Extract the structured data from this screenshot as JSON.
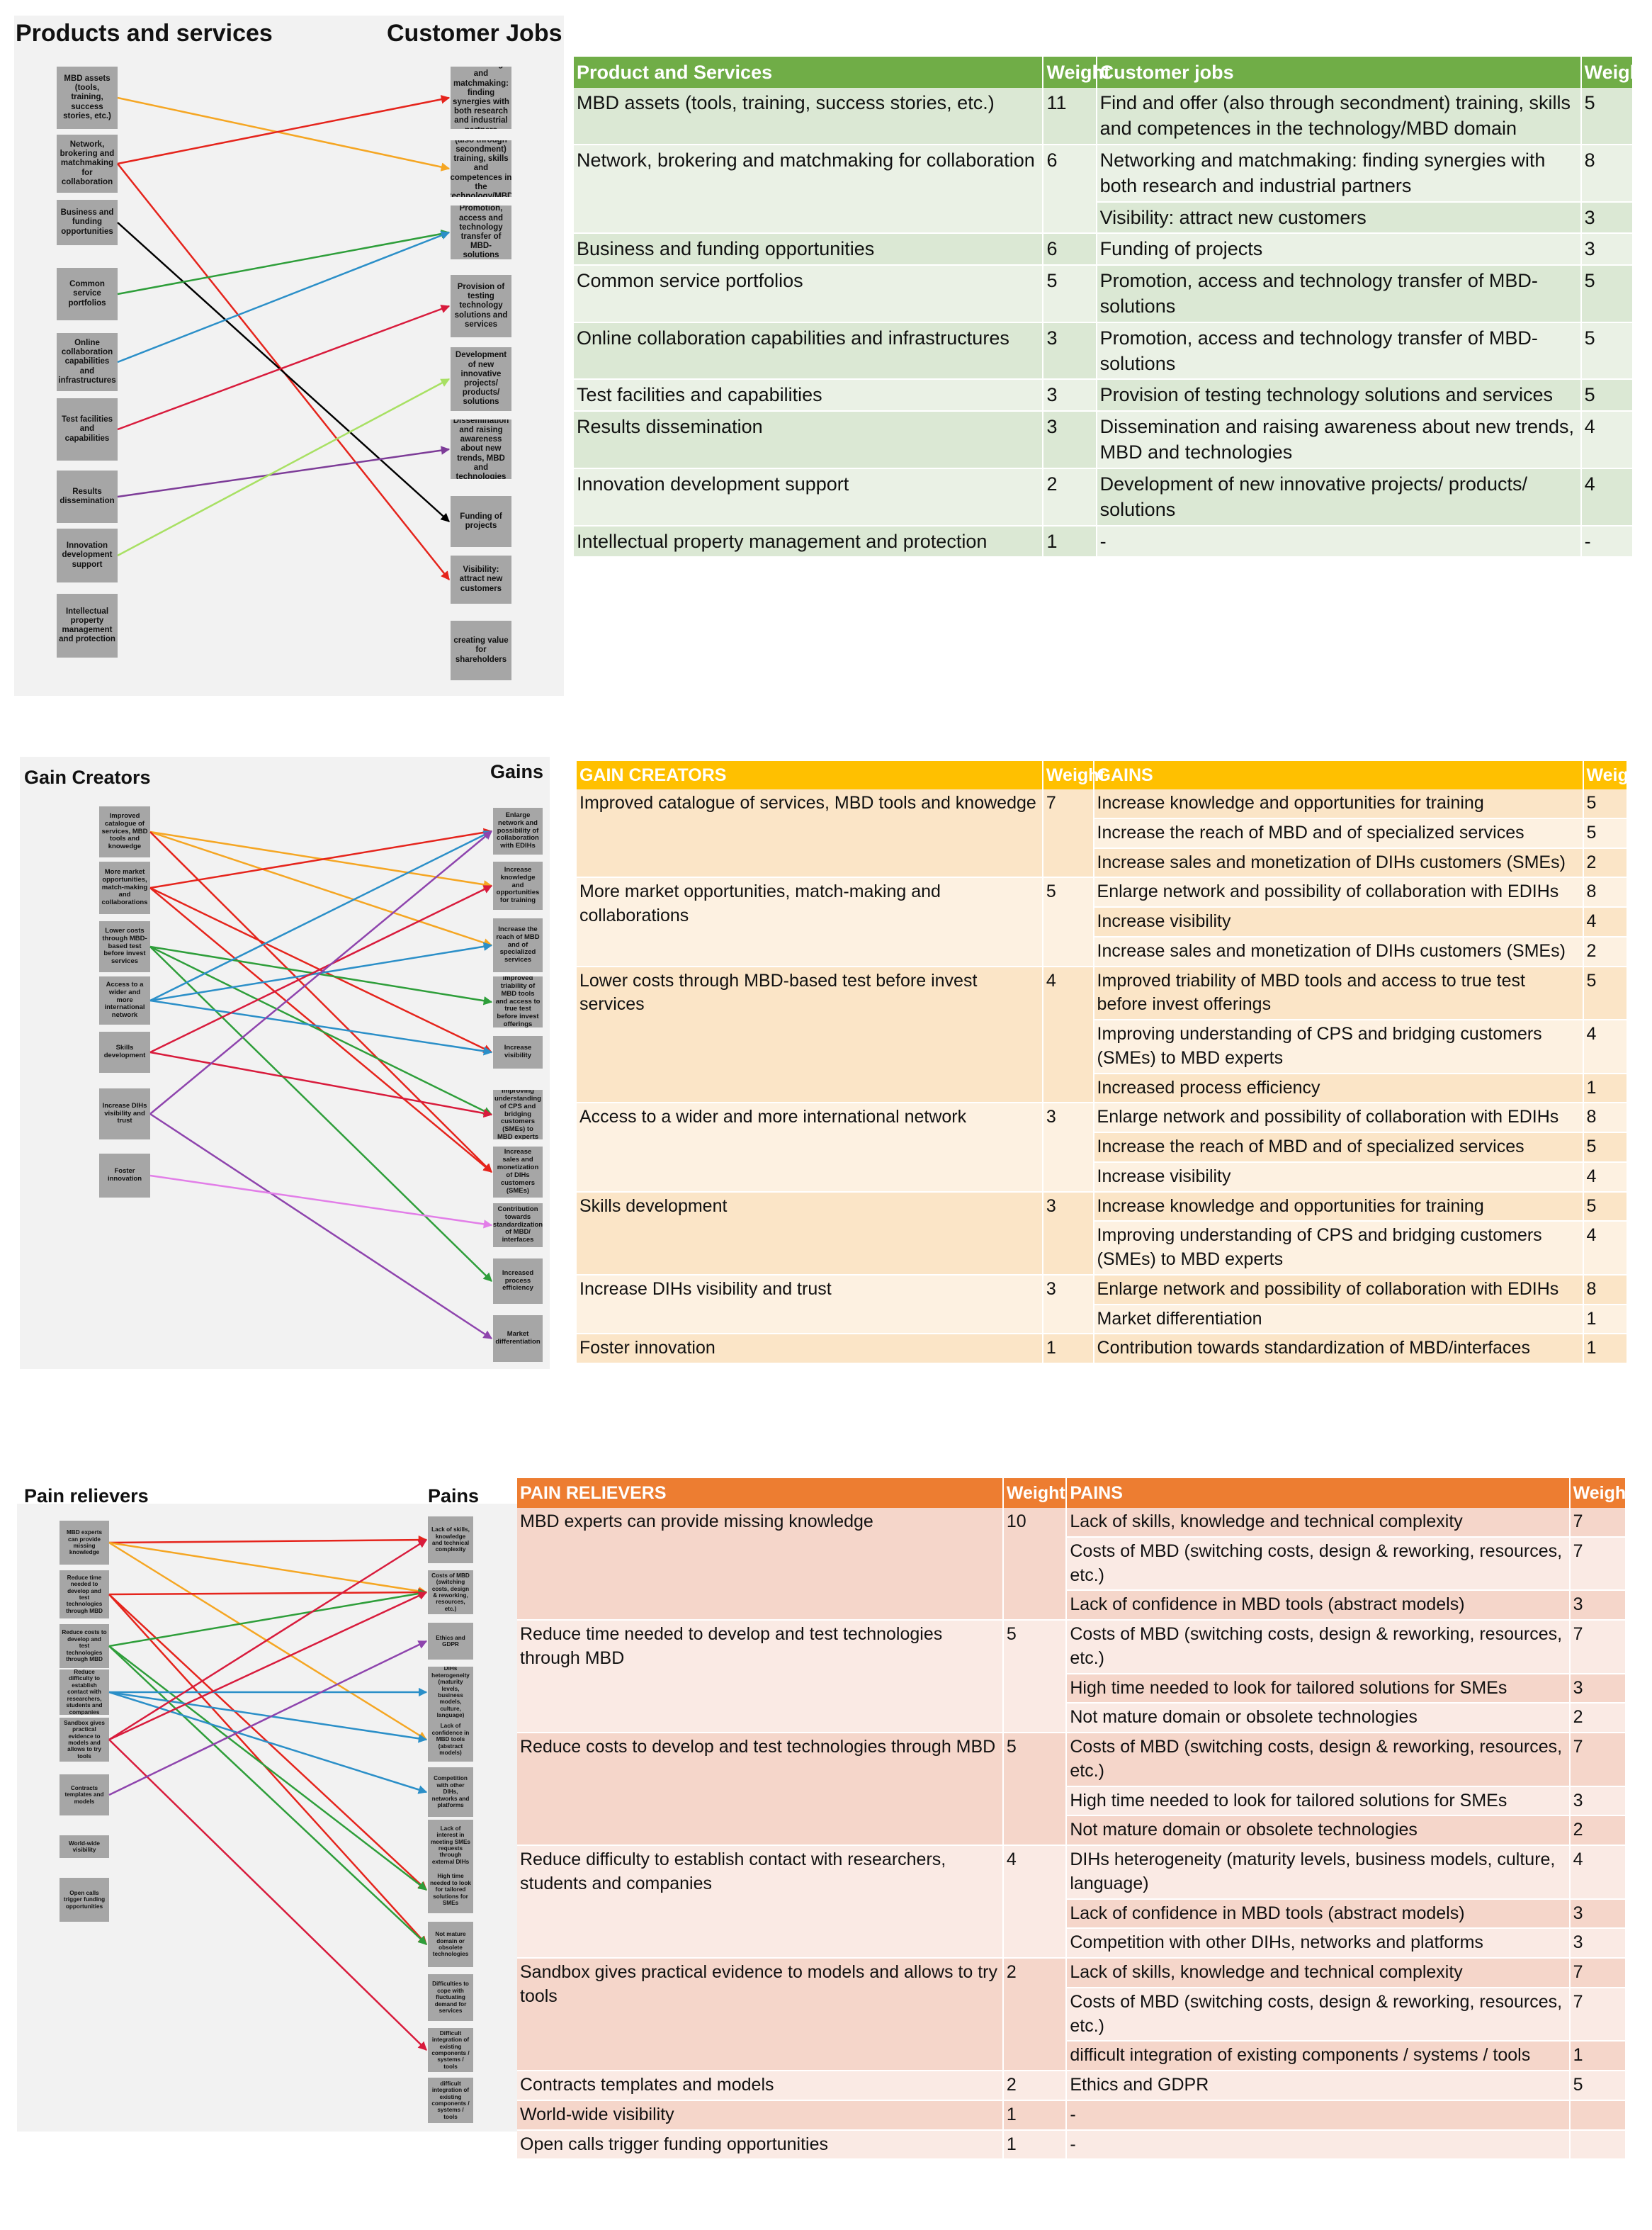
{
  "section1": {
    "left_title": "Products and services",
    "right_title": "Customer Jobs",
    "left_nodes": [
      "MBD assets (tools, training, success stories, etc.)",
      "Network, brokering and matchmaking for collaboration",
      "Business and funding opportunities",
      "Common service portfolios",
      "Online collaboration capabilities and infrastructures",
      "Test facilities and capabilities",
      "Results dissemination",
      "Innovation development support",
      "Intellectual property management and protection"
    ],
    "right_nodes": [
      "Networking and matchmaking: finding synergies with both research and industrial partners",
      "Find and offer (also through secondment) training, skills and competences in the technology/MBD domain",
      "Promotion, access and technology transfer of MBD-solutions",
      "Provision of testing technology solutions and services",
      "Development of new innovative projects/ products/ solutions",
      "Dissemination and raising awareness about new trends, MBD and technologies",
      "Funding of projects",
      "Visibility: attract new customers",
      "creating value for shareholders"
    ],
    "links": [
      {
        "from": 0,
        "to": 1,
        "color": "#f5a623"
      },
      {
        "from": 1,
        "to": 0,
        "color": "#e5241c"
      },
      {
        "from": 1,
        "to": 7,
        "color": "#e5241c"
      },
      {
        "from": 2,
        "to": 6,
        "color": "#000000"
      },
      {
        "from": 3,
        "to": 2,
        "color": "#2e9e3a"
      },
      {
        "from": 4,
        "to": 2,
        "color": "#2b8fc8"
      },
      {
        "from": 5,
        "to": 3,
        "color": "#d81b3c"
      },
      {
        "from": 6,
        "to": 5,
        "color": "#7d3c98"
      },
      {
        "from": 7,
        "to": 4,
        "color": "#a8e063"
      }
    ],
    "table": {
      "headers": [
        "Product and Services",
        "Weight",
        "Customer jobs",
        "Weight"
      ],
      "header_color": "#70ad47",
      "groups": [
        {
          "left": "MBD assets (tools, training,  success stories, etc.)",
          "weight": "11",
          "rows": [
            [
              "Find and offer (also through secondment) training, skills and competences in the technology/MBD domain",
              "5"
            ]
          ]
        },
        {
          "left": "Network, brokering and matchmaking for collaboration",
          "weight": "6",
          "rows": [
            [
              "Networking and matchmaking: finding synergies with both research and industrial partners",
              "8"
            ],
            [
              "Visibility: attract new customers",
              "3"
            ]
          ]
        },
        {
          "left": "Business and funding opportunities",
          "weight": "6",
          "rows": [
            [
              "Funding of projects",
              "3"
            ]
          ]
        },
        {
          "left": "Common service portfolios",
          "weight": "5",
          "rows": [
            [
              "Promotion, access and technology transfer of MBD-solutions",
              "5"
            ]
          ]
        },
        {
          "left": "Online collaboration capabilities and infrastructures",
          "weight": "3",
          "rows": [
            [
              "Promotion, access and technology transfer of MBD-solutions",
              "5"
            ]
          ]
        },
        {
          "left": "Test facilities and capabilities",
          "weight": "3",
          "rows": [
            [
              "Provision of testing technology solutions and services",
              "5"
            ]
          ]
        },
        {
          "left": "Results dissemination",
          "weight": "3",
          "rows": [
            [
              "Dissemination and raising awareness about new trends, MBD and technologies",
              "4"
            ]
          ]
        },
        {
          "left": "Innovation development support",
          "weight": "2",
          "rows": [
            [
              "Development of new innovative projects/ products/ solutions",
              "4"
            ]
          ]
        },
        {
          "left": "Intellectual property management and protection",
          "weight": "1",
          "rows": [
            [
              "-",
              "-"
            ]
          ]
        }
      ]
    }
  },
  "section2": {
    "left_title": "Gain Creators",
    "right_title": "Gains",
    "left_nodes": [
      "Improved catalogue of services, MBD tools and knowedge",
      "More market opportunities, match-making and collaborations",
      "Lower costs through MBD-based test before invest services",
      "Access to a wider and more international network",
      "Skills development",
      "Increase DIHs visibility and trust",
      "Foster innovation"
    ],
    "right_nodes": [
      "Enlarge network and possibility of collaboration with EDIHs",
      "Increase knowledge and opportunities for training",
      "Increase the reach of MBD and of specialized services",
      "Improved triability of MBD tools and access to true test before invest offerings",
      "Increase visibility",
      "Improving understanding of CPS and bridging customers (SMEs) to MBD experts",
      "Increase sales and monetization of DIHs customers (SMEs)",
      "Contribution towards standardization of MBD/ interfaces",
      "Increased process efficiency",
      "Market differentiation"
    ],
    "links": [
      {
        "from": 0,
        "to": 1,
        "color": "#f5a623"
      },
      {
        "from": 0,
        "to": 2,
        "color": "#f5a623"
      },
      {
        "from": 0,
        "to": 6,
        "color": "#e5241c"
      },
      {
        "from": 1,
        "to": 0,
        "color": "#e5241c"
      },
      {
        "from": 1,
        "to": 4,
        "color": "#e5241c"
      },
      {
        "from": 1,
        "to": 6,
        "color": "#e5241c"
      },
      {
        "from": 2,
        "to": 3,
        "color": "#2e9e3a"
      },
      {
        "from": 2,
        "to": 5,
        "color": "#2e9e3a"
      },
      {
        "from": 2,
        "to": 8,
        "color": "#2e9e3a"
      },
      {
        "from": 3,
        "to": 0,
        "color": "#2b8fc8"
      },
      {
        "from": 3,
        "to": 2,
        "color": "#2b8fc8"
      },
      {
        "from": 3,
        "to": 4,
        "color": "#2b8fc8"
      },
      {
        "from": 4,
        "to": 1,
        "color": "#d81b3c"
      },
      {
        "from": 4,
        "to": 5,
        "color": "#d81b3c"
      },
      {
        "from": 5,
        "to": 0,
        "color": "#8e44ad"
      },
      {
        "from": 5,
        "to": 9,
        "color": "#8e44ad"
      },
      {
        "from": 6,
        "to": 7,
        "color": "#e27ee8"
      }
    ],
    "table": {
      "headers": [
        "GAIN CREATORS",
        "Weight",
        "GAINS",
        "Weight"
      ],
      "header_color": "#ffc000",
      "groups": [
        {
          "left": "Improved catalogue of services, MBD tools and knowedge",
          "weight": "7",
          "rows": [
            [
              "Increase knowledge and opportunities for training",
              "5"
            ],
            [
              "Increase the reach of MBD and of specialized services",
              "5"
            ],
            [
              "Increase sales and monetization of DIHs customers (SMEs)",
              "2"
            ]
          ]
        },
        {
          "left": "More market opportunities, match-making and collaborations",
          "weight": "5",
          "rows": [
            [
              "Enlarge network and possibility of collaboration with EDIHs",
              "8"
            ],
            [
              "Increase visibility",
              "4"
            ],
            [
              "Increase sales and monetization of DIHs customers (SMEs)",
              "2"
            ]
          ]
        },
        {
          "left": "Lower costs through MBD-based test before invest services",
          "weight": "4",
          "rows": [
            [
              "Improved triability of MBD tools and access to true test before invest offerings",
              "5"
            ],
            [
              "Improving understanding of CPS and bridging customers (SMEs) to MBD experts",
              "4"
            ],
            [
              "Increased process efficiency",
              "1"
            ]
          ]
        },
        {
          "left": "Access to a wider and more international network",
          "weight": "3",
          "rows": [
            [
              "Enlarge network and possibility of collaboration with EDIHs",
              "8"
            ],
            [
              "Increase the reach of MBD and of specialized services",
              "5"
            ],
            [
              "Increase visibility",
              "4"
            ]
          ]
        },
        {
          "left": "Skills development",
          "weight": "3",
          "rows": [
            [
              "Increase knowledge and opportunities for training",
              "5"
            ],
            [
              "Improving understanding of CPS and bridging customers (SMEs) to MBD experts",
              "4"
            ]
          ]
        },
        {
          "left": "Increase DIHs visibility and trust",
          "weight": "3",
          "rows": [
            [
              "Enlarge network and possibility of collaboration with EDIHs",
              "8"
            ],
            [
              "Market differentiation",
              "1"
            ]
          ]
        },
        {
          "left": "Foster innovation",
          "weight": "1",
          "rows": [
            [
              "Contribution towards standardization of MBD/interfaces",
              "1"
            ]
          ]
        }
      ]
    }
  },
  "section3": {
    "left_title": "Pain relievers",
    "right_title": "Pains",
    "left_nodes": [
      "MBD experts can provide missing knowledge",
      "Reduce time needed to develop and test technologies through MBD",
      "Reduce costs to develop and test technologies through MBD",
      "Reduce difficulty to establish contact with researchers, students and companies",
      "Sandbox gives practical evidence to models and allows to try tools",
      "Contracts templates and models",
      "World-wide visibility",
      "Open calls trigger funding opportunities"
    ],
    "right_nodes": [
      "Lack of skills, knowledge and technical complexity",
      "Costs of MBD (switching costs, design & reworking, resources, etc.)",
      "Ethics and GDPR",
      "DIHs heterogeneity (maturity levels, business models, culture, language)",
      "Lack of confidence in MBD tools (abstract models)",
      "Competition with other DIHs, networks and platforms",
      "Lack of interest in meeting SMEs requests through external DIHs",
      "High time needed to look for tailored solutions for SMEs",
      "Not mature domain or obsolete technologies",
      "Difficulties to cope with fluctuating demand for services",
      "Difficult integration of existing components / systems / tools",
      "difficult integration of existing components / systems / tools"
    ],
    "links": [
      {
        "from": 0,
        "to": 0,
        "color": "#e5241c"
      },
      {
        "from": 0,
        "to": 1,
        "color": "#f5a623"
      },
      {
        "from": 0,
        "to": 4,
        "color": "#f5a623"
      },
      {
        "from": 1,
        "to": 1,
        "color": "#e5241c"
      },
      {
        "from": 1,
        "to": 7,
        "color": "#e5241c"
      },
      {
        "from": 1,
        "to": 8,
        "color": "#e5241c"
      },
      {
        "from": 2,
        "to": 1,
        "color": "#2e9e3a"
      },
      {
        "from": 2,
        "to": 7,
        "color": "#2e9e3a"
      },
      {
        "from": 2,
        "to": 8,
        "color": "#2e9e3a"
      },
      {
        "from": 3,
        "to": 3,
        "color": "#2b8fc8"
      },
      {
        "from": 3,
        "to": 4,
        "color": "#2b8fc8"
      },
      {
        "from": 3,
        "to": 5,
        "color": "#2b8fc8"
      },
      {
        "from": 4,
        "to": 0,
        "color": "#d81b3c"
      },
      {
        "from": 4,
        "to": 1,
        "color": "#d81b3c"
      },
      {
        "from": 4,
        "to": 10,
        "color": "#d81b3c"
      },
      {
        "from": 5,
        "to": 2,
        "color": "#8e44ad"
      }
    ],
    "table": {
      "headers": [
        "PAIN RELIEVERS",
        "Weight",
        "PAINS",
        "Weight"
      ],
      "header_color": "#ed7d31",
      "groups": [
        {
          "left": "MBD experts can provide missing knowledge",
          "weight": "10",
          "rows": [
            [
              "Lack of skills, knowledge and technical complexity",
              "7"
            ],
            [
              "Costs of MBD (switching costs, design & reworking, resources, etc.)",
              "7"
            ],
            [
              "Lack of confidence in MBD tools (abstract models)",
              "3"
            ]
          ]
        },
        {
          "left": "Reduce time needed to develop and test technologies through MBD",
          "weight": "5",
          "rows": [
            [
              "Costs of MBD (switching costs, design & reworking, resources, etc.)",
              "7"
            ],
            [
              "High time needed to look for tailored solutions for SMEs",
              "3"
            ],
            [
              "Not mature domain or obsolete technologies",
              "2"
            ]
          ]
        },
        {
          "left": "Reduce costs to develop and test technologies through MBD",
          "weight": "5",
          "rows": [
            [
              "Costs of MBD (switching costs, design & reworking, resources, etc.)",
              "7"
            ],
            [
              "High time needed to look for tailored solutions for SMEs",
              "3"
            ],
            [
              "Not mature domain or obsolete technologies",
              "2"
            ]
          ]
        },
        {
          "left": "Reduce difficulty to establish contact with researchers, students and companies",
          "weight": "4",
          "rows": [
            [
              "DIHs heterogeneity  (maturity levels, business models, culture, language)",
              "4"
            ],
            [
              "Lack of confidence in MBD tools (abstract models)",
              "3"
            ],
            [
              "Competition with other DIHs,  networks and platforms",
              "3"
            ]
          ]
        },
        {
          "left": "Sandbox gives practical evidence to models and allows to try tools",
          "weight": "2",
          "rows": [
            [
              "Lack of skills, knowledge and technical complexity",
              "7"
            ],
            [
              "Costs of MBD (switching costs, design & reworking, resources, etc.)",
              "7"
            ],
            [
              "difficult integration of existing components / systems / tools",
              "1"
            ]
          ]
        },
        {
          "left": "Contracts templates and models",
          "weight": "2",
          "rows": [
            [
              "Ethics and GDPR",
              "5"
            ]
          ]
        },
        {
          "left": "World-wide visibility",
          "weight": "1",
          "rows": [
            [
              "-",
              ""
            ]
          ]
        },
        {
          "left": "Open calls trigger funding opportunities",
          "weight": "1",
          "rows": [
            [
              "-",
              ""
            ]
          ]
        }
      ]
    }
  }
}
